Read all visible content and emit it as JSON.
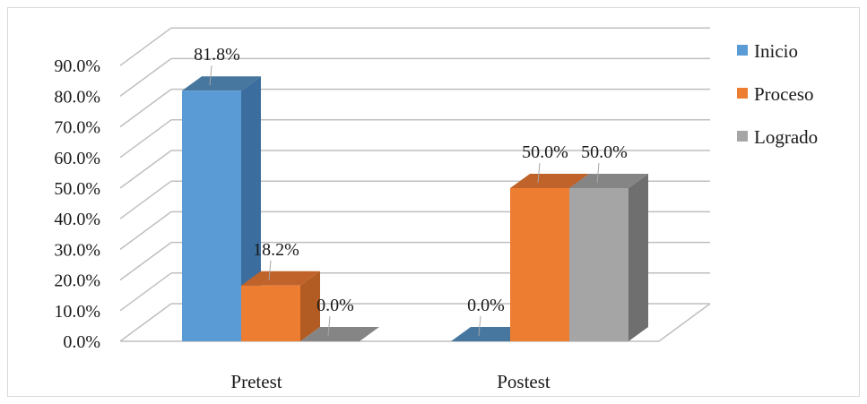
{
  "chart_data": {
    "type": "bar",
    "style": "3d-clustered-column",
    "categories": [
      "Pretest",
      "Postest"
    ],
    "series": [
      {
        "name": "Inicio",
        "values": [
          81.8,
          0.0
        ],
        "color": "#5b9bd5",
        "side_color": "#3b6e9f",
        "top_color": "#47779f"
      },
      {
        "name": "Proceso",
        "values": [
          18.2,
          50.0
        ],
        "color": "#ed7d31",
        "side_color": "#b25b22",
        "top_color": "#c0632a"
      },
      {
        "name": "Logrado",
        "values": [
          0.0,
          50.0
        ],
        "color": "#a5a5a5",
        "side_color": "#6f6f6f",
        "top_color": "#858585"
      }
    ],
    "data_labels": [
      [
        "81.8%",
        "0.0%"
      ],
      [
        "18.2%",
        "50.0%"
      ],
      [
        "0.0%",
        "50.0%"
      ]
    ],
    "y_ticks": [
      "0.0%",
      "10.0%",
      "20.0%",
      "30.0%",
      "40.0%",
      "50.0%",
      "60.0%",
      "70.0%",
      "80.0%",
      "90.0%"
    ],
    "ylim": [
      0,
      90
    ],
    "grid": true,
    "legend_position": "right",
    "gridline_color": "#bfbfbf"
  }
}
